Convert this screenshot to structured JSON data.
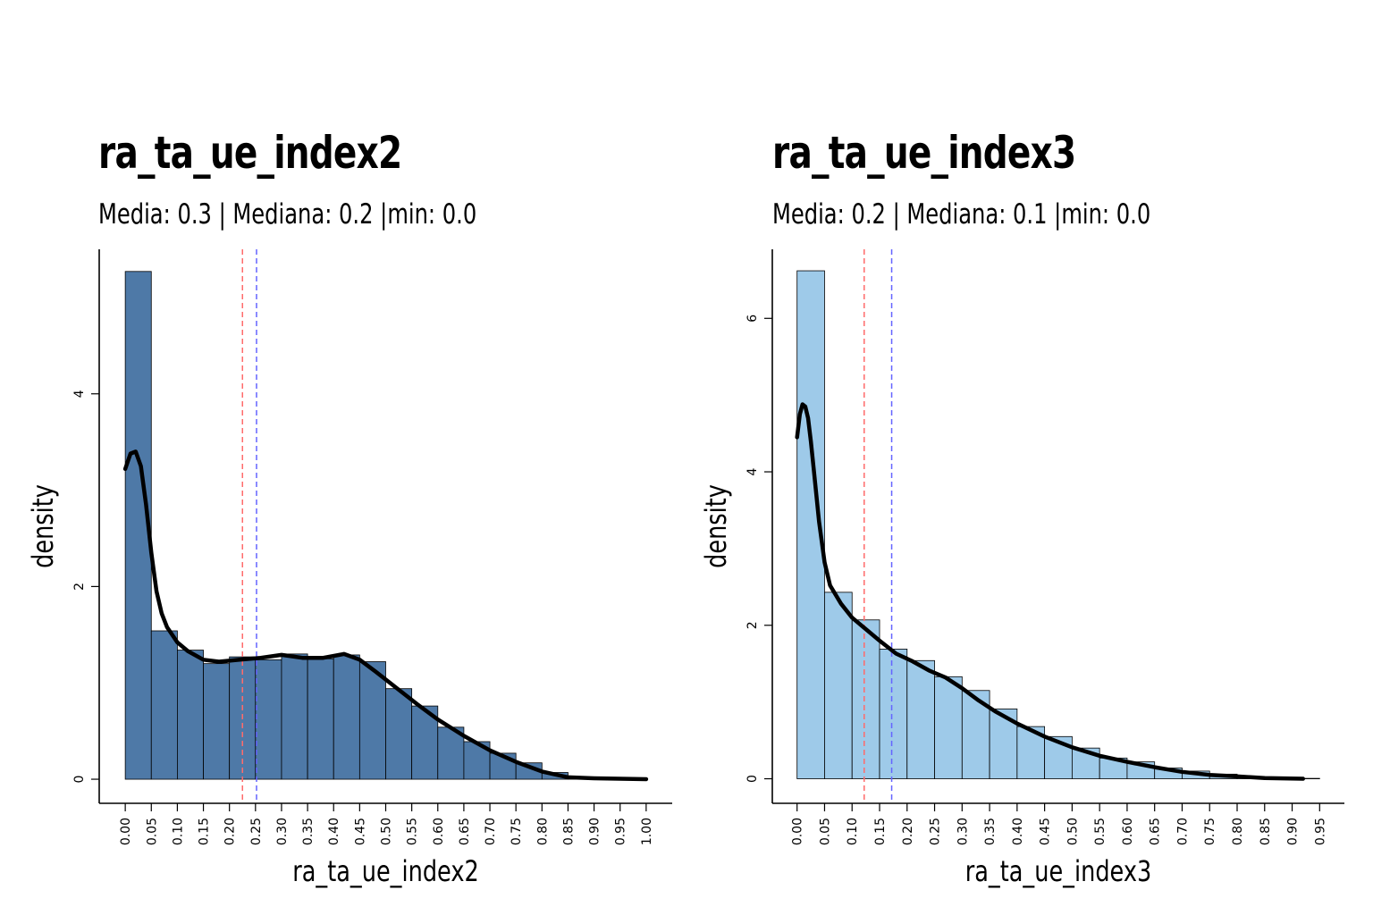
{
  "chart_data": [
    {
      "type": "bar",
      "title": "ra_ta_ue_index2",
      "subtitle": "Media: 0.3 | Mediana: 0.2 |min: 0.0",
      "xlabel": "ra_ta_ue_index2",
      "ylabel": "density",
      "bar_color": "#4E79A7",
      "bin_width": 0.05,
      "bin_starts": [
        0.0,
        0.05,
        0.1,
        0.15,
        0.2,
        0.25,
        0.3,
        0.35,
        0.4,
        0.45,
        0.5,
        0.55,
        0.6,
        0.65,
        0.7,
        0.75,
        0.8,
        0.85,
        0.9,
        0.95
      ],
      "values": [
        5.27,
        1.54,
        1.34,
        1.2,
        1.27,
        1.24,
        1.3,
        1.25,
        1.29,
        1.22,
        0.94,
        0.76,
        0.54,
        0.39,
        0.27,
        0.17,
        0.07,
        0.02,
        0.01,
        0.005
      ],
      "x_ticks": [
        "0.00",
        "0.05",
        "0.10",
        "0.15",
        "0.20",
        "0.25",
        "0.30",
        "0.35",
        "0.40",
        "0.45",
        "0.50",
        "0.55",
        "0.60",
        "0.65",
        "0.70",
        "0.75",
        "0.80",
        "0.85",
        "0.90",
        "0.95",
        "1.00"
      ],
      "y_ticks": [
        "0",
        "2",
        "4"
      ],
      "xlim": [
        -0.05,
        1.05
      ],
      "ylim": [
        -0.25,
        5.5
      ],
      "density_curve": {
        "x": [
          0.0,
          0.01,
          0.02,
          0.03,
          0.04,
          0.05,
          0.06,
          0.07,
          0.08,
          0.1,
          0.12,
          0.15,
          0.18,
          0.22,
          0.26,
          0.3,
          0.34,
          0.38,
          0.42,
          0.45,
          0.48,
          0.52,
          0.56,
          0.6,
          0.65,
          0.7,
          0.75,
          0.8,
          0.85,
          0.9,
          0.95,
          1.0
        ],
        "y": [
          3.22,
          3.38,
          3.4,
          3.25,
          2.85,
          2.35,
          1.95,
          1.72,
          1.58,
          1.42,
          1.33,
          1.24,
          1.22,
          1.24,
          1.26,
          1.29,
          1.26,
          1.26,
          1.3,
          1.24,
          1.12,
          0.95,
          0.78,
          0.62,
          0.45,
          0.3,
          0.18,
          0.08,
          0.02,
          0.01,
          0.005,
          0.0
        ]
      },
      "vlines": [
        {
          "x": 0.225,
          "color": "#FF6B6B"
        },
        {
          "x": 0.252,
          "color": "#6464FF"
        }
      ]
    },
    {
      "type": "bar",
      "title": "ra_ta_ue_index3",
      "subtitle": "Media: 0.2 | Mediana: 0.1 |min: 0.0",
      "xlabel": "ra_ta_ue_index3",
      "ylabel": "density",
      "bar_color": "#9ECAE9",
      "bin_width": 0.05,
      "bin_starts": [
        0.0,
        0.05,
        0.1,
        0.15,
        0.2,
        0.25,
        0.3,
        0.35,
        0.4,
        0.45,
        0.5,
        0.55,
        0.6,
        0.65,
        0.7,
        0.75,
        0.8,
        0.85,
        0.9
      ],
      "values": [
        6.62,
        2.43,
        2.07,
        1.69,
        1.54,
        1.33,
        1.15,
        0.91,
        0.68,
        0.55,
        0.4,
        0.27,
        0.22,
        0.14,
        0.1,
        0.06,
        0.03,
        0.015,
        0.005
      ],
      "x_ticks": [
        "0.00",
        "0.05",
        "0.10",
        "0.15",
        "0.20",
        "0.25",
        "0.30",
        "0.35",
        "0.40",
        "0.45",
        "0.50",
        "0.55",
        "0.60",
        "0.65",
        "0.70",
        "0.75",
        "0.80",
        "0.85",
        "0.90",
        "0.95"
      ],
      "y_ticks": [
        "0",
        "2",
        "4",
        "6"
      ],
      "xlim": [
        -0.045,
        0.995
      ],
      "ylim": [
        -0.32,
        6.9
      ],
      "density_curve": {
        "x": [
          0.0,
          0.005,
          0.01,
          0.015,
          0.02,
          0.025,
          0.03,
          0.04,
          0.05,
          0.06,
          0.08,
          0.1,
          0.12,
          0.15,
          0.18,
          0.21,
          0.24,
          0.27,
          0.3,
          0.33,
          0.36,
          0.4,
          0.45,
          0.5,
          0.55,
          0.6,
          0.65,
          0.7,
          0.75,
          0.8,
          0.85,
          0.92
        ],
        "y": [
          4.45,
          4.75,
          4.88,
          4.85,
          4.7,
          4.4,
          4.05,
          3.35,
          2.82,
          2.52,
          2.28,
          2.1,
          1.98,
          1.8,
          1.63,
          1.53,
          1.41,
          1.32,
          1.18,
          1.02,
          0.88,
          0.72,
          0.55,
          0.41,
          0.3,
          0.22,
          0.15,
          0.09,
          0.05,
          0.03,
          0.01,
          0.0
        ]
      },
      "vlines": [
        {
          "x": 0.122,
          "color": "#FF6B6B"
        },
        {
          "x": 0.172,
          "color": "#6464FF"
        }
      ]
    }
  ]
}
